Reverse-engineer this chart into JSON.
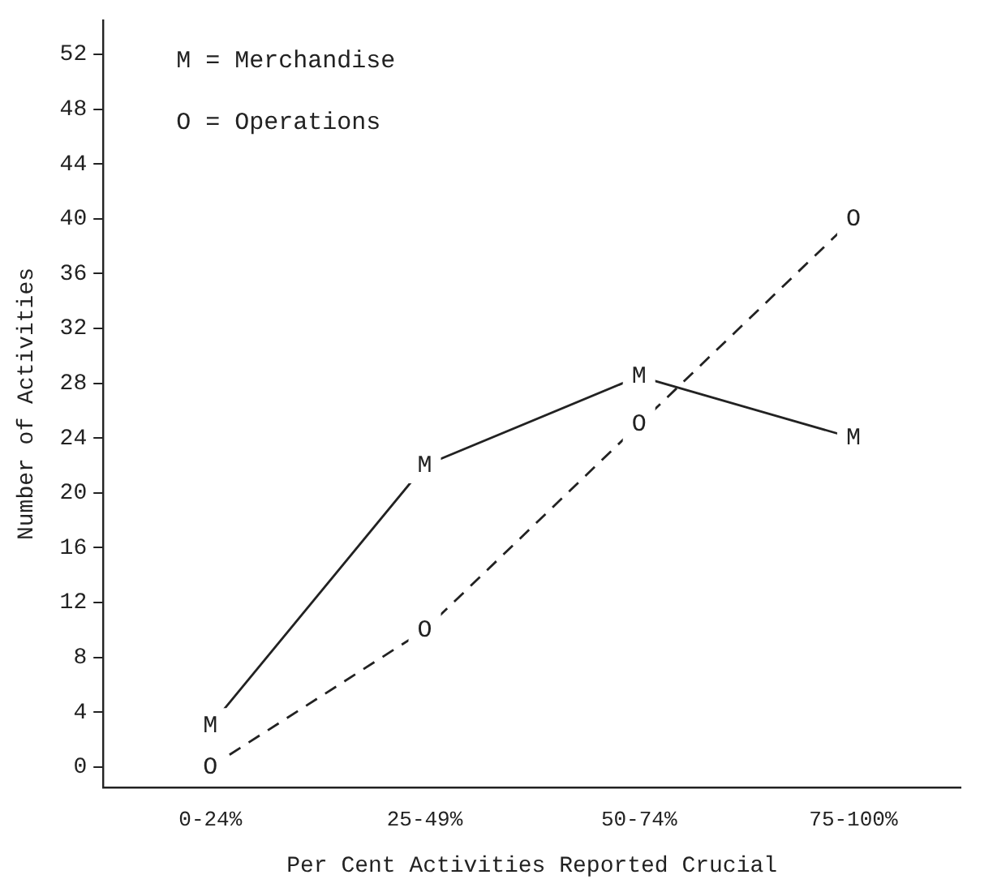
{
  "chart_data": {
    "type": "line",
    "xlabel": "Per Cent Activities Reported Crucial",
    "ylabel": "Number of Activities",
    "categories": [
      "0-24%",
      "25-49%",
      "50-74%",
      "75-100%"
    ],
    "series": [
      {
        "color": "#222222",
        "line_style": "solid",
        "values": [
          3,
          22,
          28.5,
          24
        ],
        "value_labels": [
          "M",
          "M",
          "M",
          "M"
        ]
      },
      {
        "color": "#222222",
        "line_style": "dashed",
        "values": [
          0,
          10,
          25,
          40
        ],
        "value_labels": [
          "O",
          "O",
          "O",
          "O"
        ]
      }
    ],
    "ylim": [
      -1.5,
      54.5
    ],
    "yticks": [
      0,
      4,
      8,
      12,
      16,
      20,
      24,
      28,
      32,
      36,
      40,
      44,
      48,
      52
    ],
    "grid": false,
    "legend": false,
    "annotations": [
      "M = Merchandise",
      "O = Operations"
    ]
  }
}
